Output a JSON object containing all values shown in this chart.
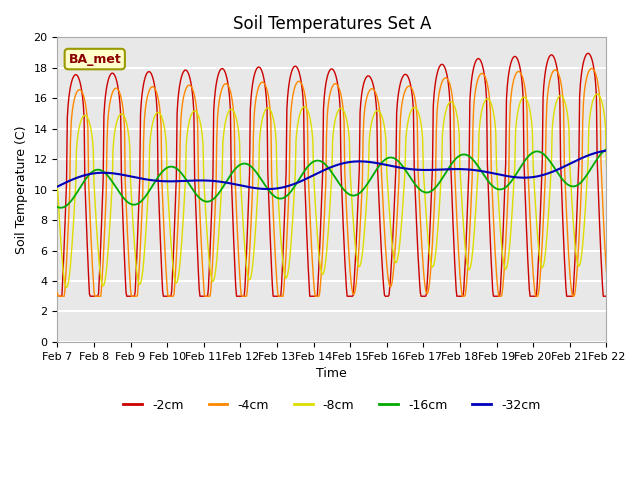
{
  "title": "Soil Temperatures Set A",
  "xlabel": "Time",
  "ylabel": "Soil Temperature (C)",
  "ylim": [
    0,
    20
  ],
  "background_color": "#e8e8e8",
  "grid_color": "white",
  "annotation_text": "BA_met",
  "annotation_bg": "#ffffcc",
  "annotation_border": "#999900",
  "series_colors": {
    "-2cm": "#cc0000",
    "-4cm": "#ff8800",
    "-8cm": "#dddd00",
    "-16cm": "#00aa00",
    "-32cm": "#0000bb"
  },
  "legend_colors": [
    "#cc0000",
    "#ff8800",
    "#dddd00",
    "#00aa00",
    "#0000bb"
  ],
  "legend_labels": [
    "-2cm",
    "-4cm",
    "-8cm",
    "-16cm",
    "-32cm"
  ],
  "x_tick_labels": [
    "Feb 7",
    "Feb 8",
    "Feb 9",
    "Feb 10",
    "Feb 11",
    "Feb 12",
    "Feb 13",
    "Feb 14",
    "Feb 15",
    "Feb 16",
    "Feb 17",
    "Feb 18",
    "Feb 19",
    "Feb 20",
    "Feb 21",
    "Feb 22"
  ],
  "title_fontsize": 12,
  "axis_fontsize": 9,
  "tick_fontsize": 8
}
